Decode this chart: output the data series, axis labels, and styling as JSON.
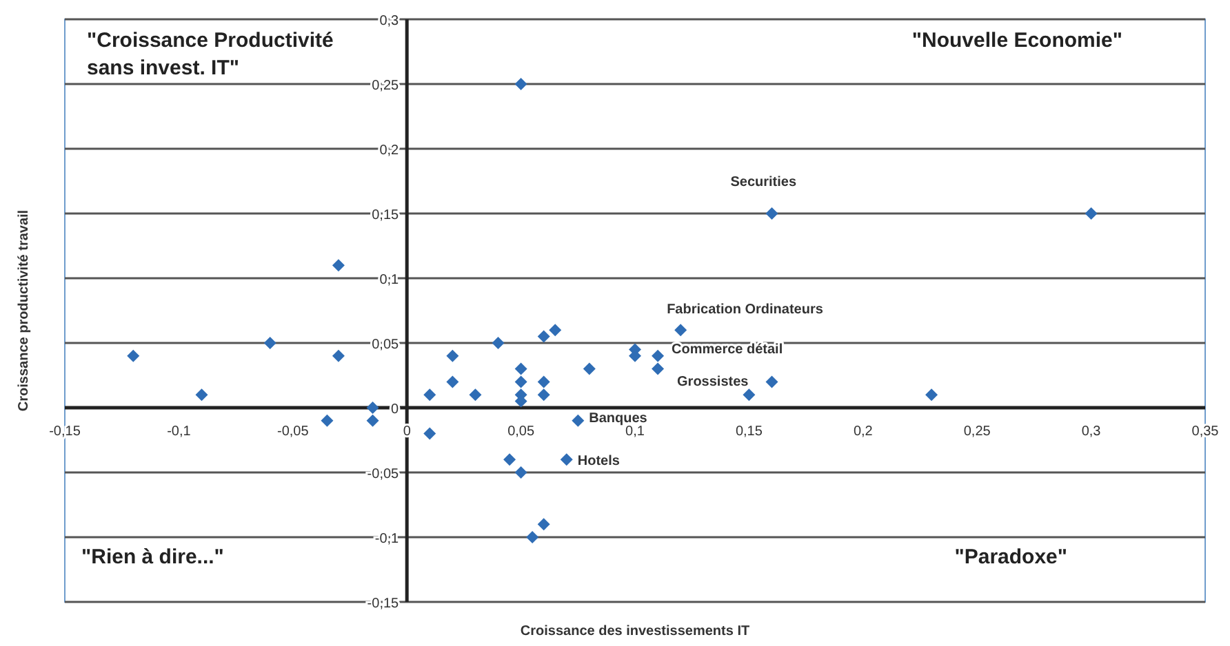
{
  "chart_data": {
    "type": "scatter",
    "xlabel": "Croissance des investissements IT",
    "ylabel": "Croissance productivité travail",
    "marker": "diamond",
    "grid": "y",
    "xlim": [
      -0.15,
      0.35
    ],
    "ylim": [
      -0.15,
      0.3
    ],
    "xticks": [
      {
        "value": -0.15,
        "label": "-0,15"
      },
      {
        "value": -0.1,
        "label": "-0,1"
      },
      {
        "value": -0.05,
        "label": "-0,05"
      },
      0,
      {
        "value": 0.05,
        "label": "0,05"
      },
      {
        "value": 0.1,
        "label": "0,1"
      },
      {
        "value": 0.15,
        "label": "0,15"
      },
      {
        "value": 0.2,
        "label": "0,2"
      },
      {
        "value": 0.25,
        "label": "0,25"
      },
      {
        "value": 0.3,
        "label": "0,3"
      },
      {
        "value": 0.35,
        "label": "0,35"
      }
    ],
    "yticks": [
      {
        "value": -0.15,
        "label": "-0,15"
      },
      {
        "value": -0.1,
        "label": "-0,1"
      },
      {
        "value": -0.05,
        "label": "-0,05"
      },
      0,
      {
        "value": 0.05,
        "label": "0,05"
      },
      {
        "value": 0.1,
        "label": "0,1"
      },
      {
        "value": 0.15,
        "label": "0,15"
      },
      {
        "value": 0.2,
        "label": "0,2"
      },
      {
        "value": 0.25,
        "label": "0,25"
      },
      {
        "value": 0.3,
        "label": "0,3"
      }
    ],
    "series": [
      {
        "color": "#2f6db5",
        "x": [
          0.05,
          -0.03,
          0.16,
          0.3,
          0.12,
          -0.12,
          -0.06,
          -0.03,
          -0.09,
          -0.035,
          -0.015,
          -0.015,
          0.01,
          0.01,
          0.02,
          0.02,
          0.03,
          0.04,
          0.05,
          0.05,
          0.05,
          0.05,
          0.06,
          0.065,
          0.06,
          0.06,
          0.08,
          0.075,
          0.045,
          0.05,
          0.07,
          0.06,
          0.055,
          0.1,
          0.1,
          0.11,
          0.11,
          0.16,
          0.15,
          0.23
        ],
        "values": [
          0.25,
          0.11,
          0.15,
          0.15,
          0.06,
          0.04,
          0.05,
          0.04,
          0.01,
          -0.01,
          0,
          -0.01,
          0.01,
          -0.02,
          0.04,
          0.02,
          0.01,
          0.05,
          0.03,
          0.02,
          0.01,
          0.005,
          0.055,
          0.06,
          0.02,
          0.01,
          0.03,
          -0.01,
          -0.04,
          -0.05,
          -0.04,
          -0.09,
          -0.1,
          0.045,
          0.04,
          0.04,
          0.03,
          0.02,
          0.01,
          0.01
        ]
      }
    ],
    "annotations": [
      "\"Croissance Productivité\nsans invest. IT\"",
      "\"Nouvelle Economie\"",
      "\"Rien à dire...\"",
      "\"Paradoxe\"",
      {
        "text": "Securities",
        "x": 0.16,
        "y": 0.15
      },
      {
        "text": "Fabrication Ordinateurs",
        "x": 0.12,
        "y": 0.06
      },
      {
        "text": "Commerce détail",
        "x": 0.11,
        "y": 0.04
      },
      {
        "text": "Grossistes",
        "x": 0.11,
        "y": 0.03
      },
      {
        "text": "Banques",
        "x": 0.075,
        "y": -0.01
      },
      {
        "text": "Hotels",
        "x": 0.07,
        "y": -0.04
      }
    ]
  }
}
